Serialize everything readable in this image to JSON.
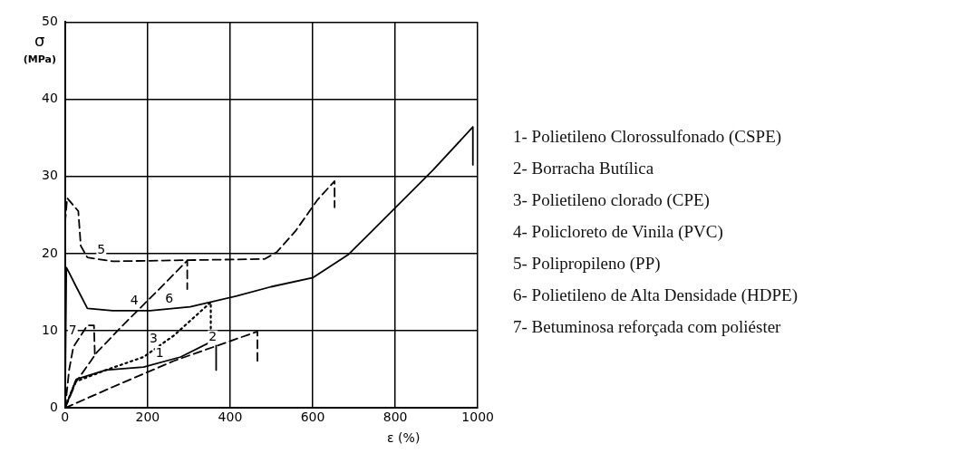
{
  "chart_data": {
    "type": "line",
    "xlabel": "ε (%)",
    "ylabel": "σ (MPa)",
    "xlim": [
      0,
      1000
    ],
    "ylim": [
      0,
      50
    ],
    "xticks": [
      0,
      200,
      400,
      600,
      800,
      1000
    ],
    "yticks": [
      0,
      10,
      20,
      30,
      40,
      50
    ],
    "grid": true,
    "legend": false,
    "marker": "none",
    "series": [
      {
        "name": "1",
        "color": "#000000",
        "line_style": "solid",
        "x": [
          0,
          27,
          99,
          190,
          280,
          366,
          366
        ],
        "values": [
          0,
          3.7,
          4.9,
          5.3,
          6.6,
          8.9,
          4.9
        ]
      },
      {
        "name": "2",
        "color": "#000000",
        "line_style": "dashed",
        "x": [
          0,
          115,
          264,
          466,
          466
        ],
        "values": [
          0,
          2.7,
          6.1,
          9.9,
          6.1
        ]
      },
      {
        "name": "3",
        "color": "#000000",
        "line_style": "dotted",
        "x": [
          0,
          25,
          99,
          190,
          264,
          353,
          353
        ],
        "values": [
          0,
          3.4,
          4.9,
          6.6,
          9.4,
          13.7,
          10.1
        ]
      },
      {
        "name": "4",
        "color": "#000000",
        "line_style": "dashed",
        "x": [
          0,
          27,
          77,
          138,
          228,
          296,
          296
        ],
        "values": [
          0,
          3.4,
          7.2,
          10.6,
          15.4,
          19.1,
          15.4
        ]
      },
      {
        "name": "5",
        "color": "#000000",
        "line_style": "dashed",
        "x": [
          0,
          5,
          32,
          38,
          54,
          115,
          484,
          513,
          558,
          612,
          653,
          653
        ],
        "values": [
          24,
          27.2,
          25.5,
          21,
          19.5,
          19,
          19.3,
          20.2,
          22.9,
          27,
          29.4,
          26
        ]
      },
      {
        "name": "6",
        "color": "#000000",
        "line_style": "solid",
        "x": [
          0,
          3,
          10,
          27,
          54,
          115,
          206,
          303,
          416,
          499,
          601,
          687,
          807,
          891,
          988,
          988
        ],
        "values": [
          0,
          18.2,
          17.5,
          15.7,
          12.9,
          12.6,
          12.6,
          13.1,
          14.5,
          15.7,
          16.9,
          19.9,
          26.3,
          30.8,
          36.4,
          31.5
        ]
      },
      {
        "name": "7",
        "color": "#000000",
        "line_style": "dashed",
        "x": [
          0,
          10,
          20,
          54,
          70,
          72
        ],
        "values": [
          0,
          5,
          7.9,
          10.7,
          10.7,
          7
        ]
      }
    ],
    "annotations": [
      "1- Polietileno Clorossulfonado (CSPE)",
      "2- Borracha Butílica",
      "3- Polietileno clorado (CPE)",
      "4- Policloreto de Vinila (PVC)",
      "5- Polipropileno (PP)",
      "6- Polietileno de Alta Densidade (HDPE)",
      "7- Betuminosa reforçada com poliéster"
    ]
  }
}
